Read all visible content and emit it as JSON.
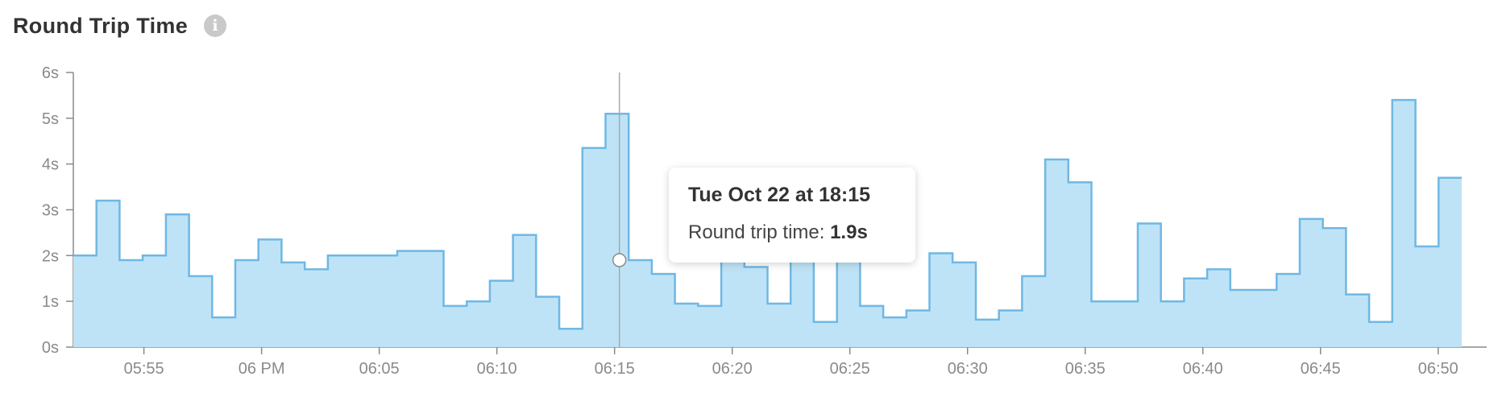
{
  "header": {
    "title": "Round Trip Time",
    "info_icon": "info-icon",
    "info_glyph": "i"
  },
  "tooltip": {
    "date": "Tue Oct 22 at 18:15",
    "label": "Round trip time:",
    "value": "1.9s"
  },
  "colors": {
    "line": "#6fb8e4",
    "fill": "#bfe3f6",
    "axis": "#8a8a8a",
    "cursor": "#a8a8a8"
  },
  "chart_data": {
    "type": "area",
    "step": true,
    "title": "Round Trip Time",
    "ylabel": "",
    "xlabel": "",
    "y_unit": "s",
    "ylim": [
      0,
      6
    ],
    "yticks": [
      "0s",
      "1s",
      "2s",
      "3s",
      "4s",
      "5s",
      "6s"
    ],
    "x_start": "05:52",
    "x_end": "06:51",
    "xticks": [
      {
        "label": "05:55",
        "time": "05:55"
      },
      {
        "label": "06 PM",
        "time": "06:00"
      },
      {
        "label": "06:05",
        "time": "06:05"
      },
      {
        "label": "06:10",
        "time": "06:10"
      },
      {
        "label": "06:15",
        "time": "06:15"
      },
      {
        "label": "06:20",
        "time": "06:20"
      },
      {
        "label": "06:25",
        "time": "06:25"
      },
      {
        "label": "06:30",
        "time": "06:30"
      },
      {
        "label": "06:35",
        "time": "06:35"
      },
      {
        "label": "06:40",
        "time": "06:40"
      },
      {
        "label": "06:45",
        "time": "06:45"
      },
      {
        "label": "06:50",
        "time": "06:50"
      }
    ],
    "cursor_time": "06:15",
    "cursor_value": 1.9,
    "series": [
      {
        "x": [
          "05:52",
          "05:52",
          "05:53",
          "05:54",
          "05:55",
          "05:56",
          "05:57",
          "05:58",
          "05:59",
          "06:00",
          "06:01",
          "06:02",
          "06:03",
          "06:04",
          "06:05",
          "06:06",
          "06:07",
          "06:08",
          "06:09",
          "06:10",
          "06:11",
          "06:12",
          "06:13",
          "06:14",
          "06:15",
          "06:16",
          "06:17",
          "06:18",
          "06:19",
          "06:20",
          "06:21",
          "06:22",
          "06:23",
          "06:24",
          "06:25",
          "06:26",
          "06:27",
          "06:28",
          "06:29",
          "06:30",
          "06:31",
          "06:32",
          "06:33",
          "06:34",
          "06:35",
          "06:36",
          "06:37",
          "06:38",
          "06:39",
          "06:40",
          "06:41",
          "06:42",
          "06:43",
          "06:44",
          "06:45",
          "06:46",
          "06:47",
          "06:48",
          "06:49",
          "06:50"
        ],
        "values": [
          2.0,
          3.2,
          1.9,
          2.0,
          2.9,
          1.55,
          0.65,
          1.9,
          2.35,
          1.85,
          1.7,
          2.0,
          2.0,
          2.0,
          2.1,
          2.1,
          0.9,
          1.0,
          1.45,
          2.45,
          1.1,
          0.4,
          4.35,
          5.1,
          1.9,
          1.6,
          0.95,
          0.9,
          2.05,
          1.75,
          0.95,
          3.7,
          0.55,
          2.15,
          0.9,
          0.65,
          0.8,
          2.05,
          1.85,
          0.6,
          0.8,
          1.55,
          4.1,
          3.6,
          1.0,
          1.0,
          2.7,
          1.0,
          1.5,
          1.7,
          1.25,
          1.25,
          1.6,
          2.8,
          2.6,
          1.15,
          0.55,
          5.4,
          2.2,
          3.7
        ]
      }
    ]
  }
}
